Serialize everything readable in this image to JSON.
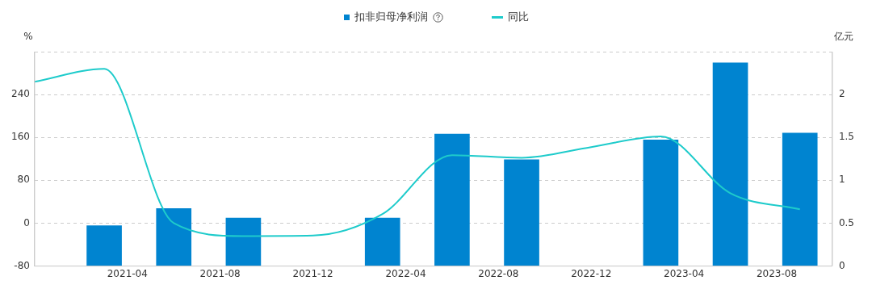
{
  "chart_data": {
    "type": "bar",
    "ylabel": "%",
    "y2label": "亿元",
    "x": [
      "2021-03",
      "2021-06",
      "2021-09",
      "2021-12",
      "2022-03",
      "2022-06",
      "2022-09",
      "2022-12",
      "2023-03",
      "2023-06",
      "2023-09"
    ],
    "series": [
      {
        "name": "扣非归母净利润",
        "axis": "y2",
        "color": "#0084d0",
        "values": [
          0.47,
          0.67,
          0.56,
          null,
          0.56,
          1.54,
          1.24,
          null,
          1.47,
          2.37,
          1.55
        ]
      },
      {
        "name": "同比",
        "type": "line",
        "axis": "y",
        "color": "#1ecbcb",
        "x": [
          "2020-12",
          "2021-03",
          "2021-06",
          "2021-09",
          "2021-12",
          "2022-03",
          "2022-06",
          "2022-09",
          "2022-12",
          "2023-03",
          "2023-06",
          "2023-09"
        ],
        "values": [
          264,
          288,
          0,
          -24,
          -23,
          17,
          127,
          122,
          142,
          162,
          56,
          26
        ]
      }
    ],
    "xlim": [
      "2020-12",
      "2023-10-13"
    ],
    "xticks": [
      "2021-04",
      "2021-08",
      "2021-12",
      "2022-04",
      "2022-08",
      "2022-12",
      "2023-04",
      "2023-08"
    ],
    "ylim": [
      -80,
      320
    ],
    "yticks": [
      -80,
      0,
      80,
      160,
      240,
      {
        "value": 320,
        "label": null
      }
    ],
    "y2lim": [
      0,
      2.5
    ],
    "y2ticks": [
      0,
      0.5,
      1,
      1.5,
      2
    ],
    "grid": "y",
    "legend": "top",
    "marker": "none",
    "line_style": "solid"
  }
}
